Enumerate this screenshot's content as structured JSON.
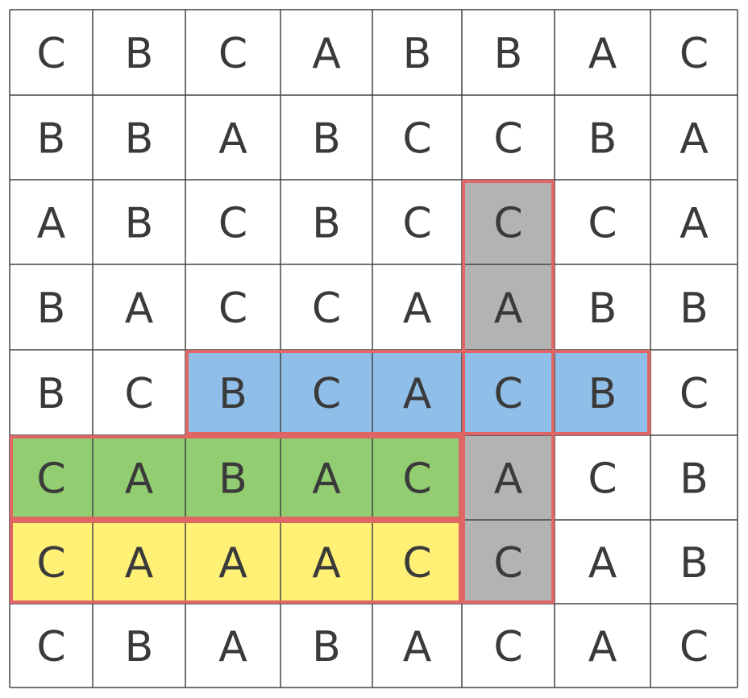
{
  "grid": {
    "rows": [
      [
        "C",
        "B",
        "C",
        "A",
        "B",
        "B",
        "A",
        "C"
      ],
      [
        "B",
        "B",
        "A",
        "B",
        "C",
        "C",
        "B",
        "A"
      ],
      [
        "A",
        "B",
        "C",
        "B",
        "C",
        "C",
        "C",
        "A"
      ],
      [
        "B",
        "A",
        "C",
        "C",
        "A",
        "A",
        "B",
        "B"
      ],
      [
        "B",
        "C",
        "B",
        "C",
        "A",
        "C",
        "B",
        "C"
      ],
      [
        "C",
        "A",
        "B",
        "A",
        "C",
        "A",
        "C",
        "B"
      ],
      [
        "C",
        "A",
        "A",
        "A",
        "C",
        "C",
        "A",
        "B"
      ],
      [
        "C",
        "B",
        "A",
        "B",
        "A",
        "C",
        "A",
        "C"
      ]
    ]
  },
  "highlights": [
    {
      "name": "gray-vertical-highlight",
      "color": "#b3b3b3",
      "row_start": 2,
      "row_end": 6,
      "col_start": 5,
      "col_end": 5
    },
    {
      "name": "blue-horizontal-highlight",
      "color": "#8fbfe8",
      "row_start": 4,
      "row_end": 4,
      "col_start": 2,
      "col_end": 6
    },
    {
      "name": "green-horizontal-highlight",
      "color": "#92cd72",
      "row_start": 5,
      "row_end": 5,
      "col_start": 0,
      "col_end": 4
    },
    {
      "name": "yellow-horizontal-highlight",
      "color": "#fff176",
      "row_start": 6,
      "row_end": 6,
      "col_start": 0,
      "col_end": 4
    }
  ],
  "colors": {
    "grid_line": "#444444",
    "outline": "#e06666",
    "text": "#3a3a3a",
    "background": "#ffffff"
  }
}
